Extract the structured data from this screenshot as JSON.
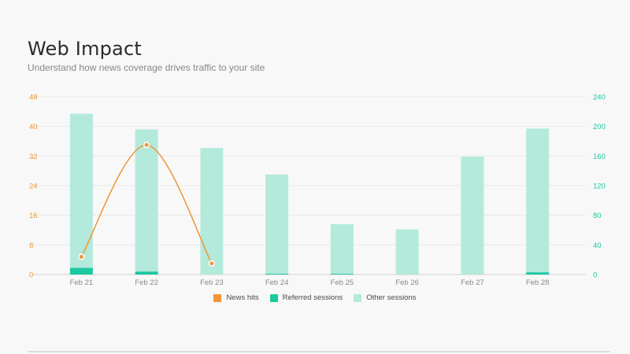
{
  "header": {
    "title": "Web Impact",
    "subtitle": "Understand how news coverage drives traffic to your site"
  },
  "colors": {
    "news_hits": "#f0943a",
    "referred_sessions": "#1dc8a0",
    "other_sessions": "#b3eadb",
    "left_axis_text": "#f0943a",
    "right_axis_text": "#1dc8a0"
  },
  "legend": [
    {
      "label": "News hits",
      "color": "#f0943a"
    },
    {
      "label": "Referred sessions",
      "color": "#1dc8a0"
    },
    {
      "label": "Other sessions",
      "color": "#b3eadb"
    }
  ],
  "chart_data": {
    "type": "bar",
    "categories": [
      "Feb 21",
      "Feb 22",
      "Feb 23",
      "Feb 24",
      "Feb 25",
      "Feb 26",
      "Feb 27",
      "Feb 28"
    ],
    "left_axis": {
      "ticks": [
        0,
        8,
        16,
        24,
        32,
        40,
        48
      ],
      "ylim": [
        0,
        48
      ]
    },
    "right_axis": {
      "ticks": [
        0,
        40,
        80,
        120,
        160,
        200,
        240
      ],
      "ylim": [
        0,
        240
      ]
    },
    "series": [
      {
        "name": "Referred sessions",
        "type": "stacked-bar",
        "axis": "right",
        "values": [
          9,
          4,
          0,
          1,
          1,
          0,
          0,
          3
        ]
      },
      {
        "name": "Other sessions",
        "type": "stacked-bar",
        "axis": "right",
        "values": [
          208,
          192,
          171,
          134,
          67,
          61,
          159,
          194
        ]
      },
      {
        "name": "News hits",
        "type": "line",
        "axis": "left",
        "values": [
          4.8,
          35,
          3,
          null,
          null,
          null,
          null,
          null
        ]
      }
    ],
    "grid": true,
    "legend_position": "bottom"
  }
}
